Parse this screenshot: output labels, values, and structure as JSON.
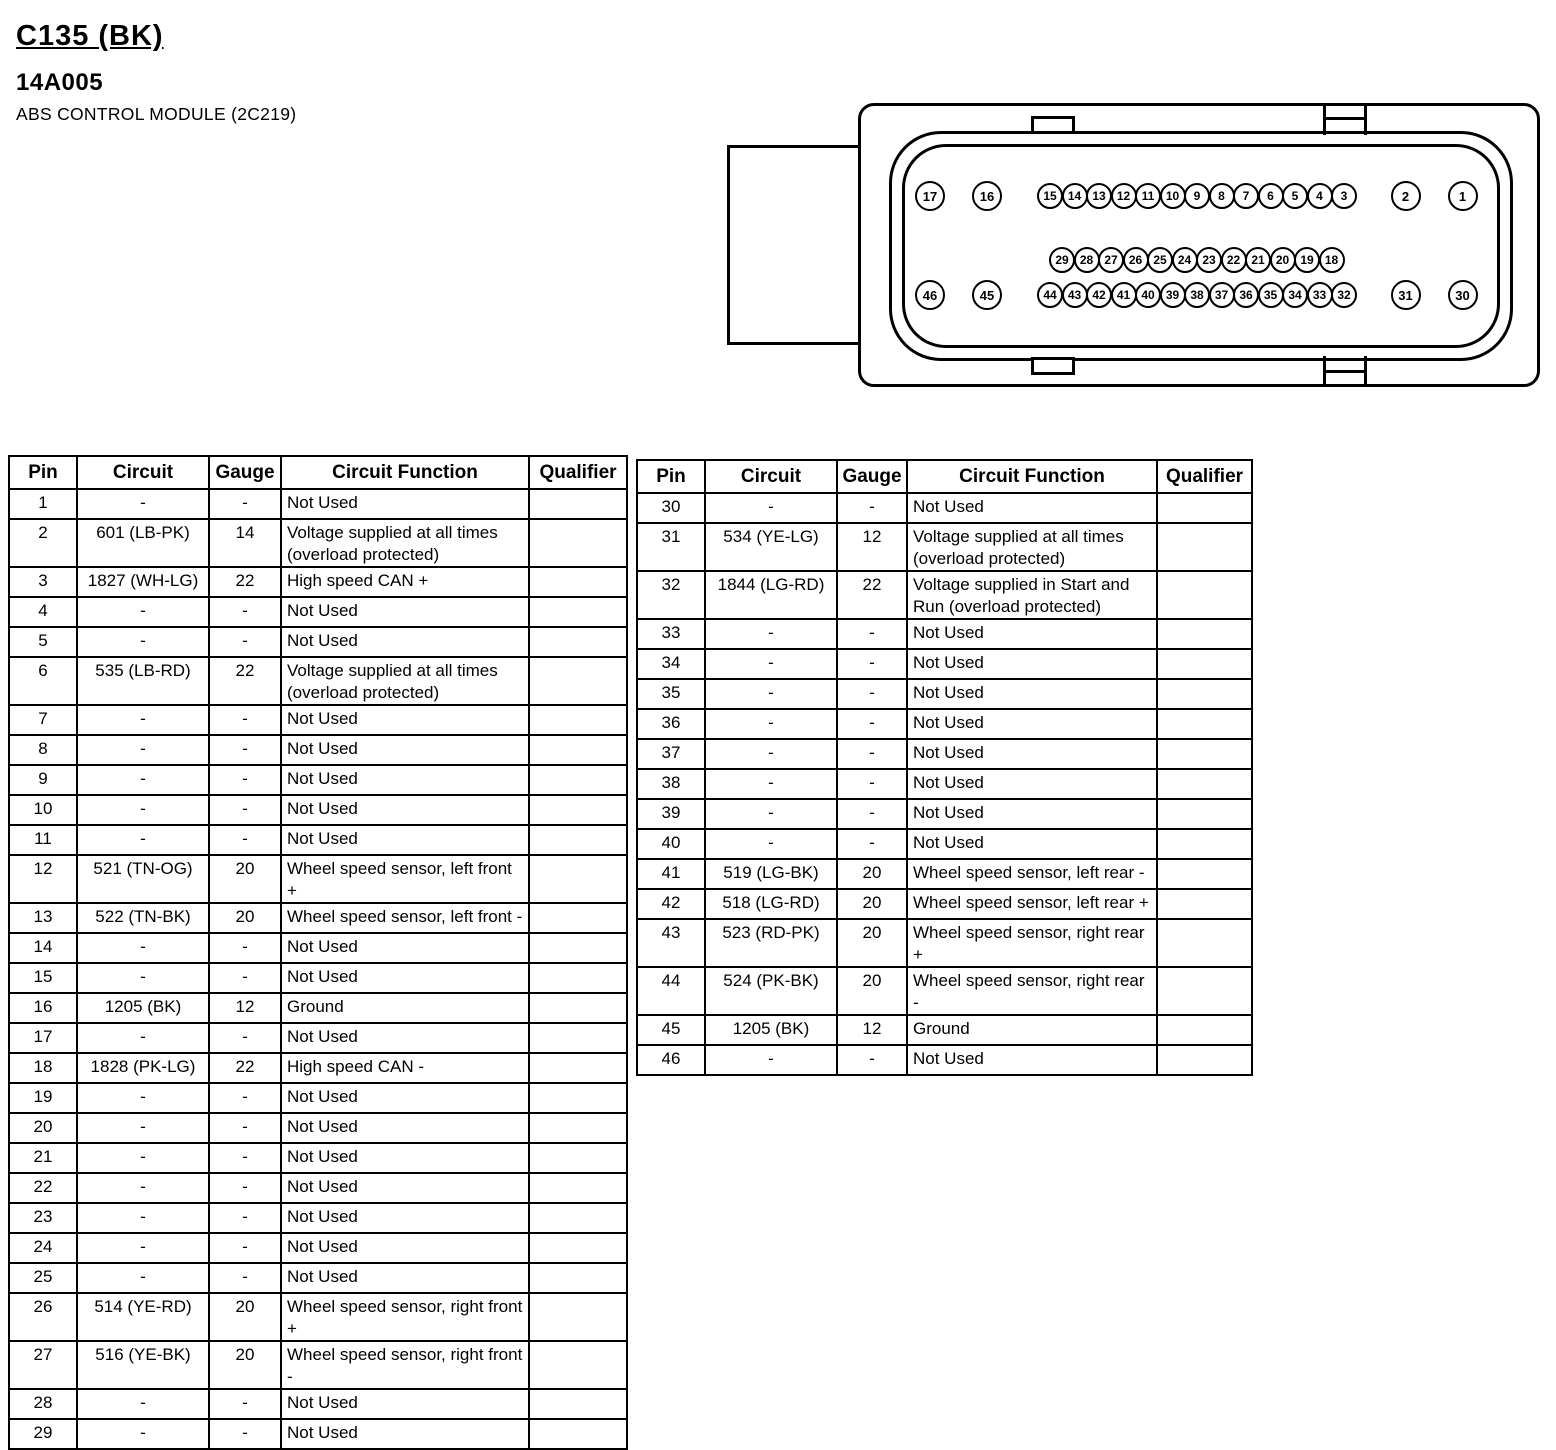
{
  "header": {
    "connector_id": "C135 (BK)",
    "part_number": "14A005",
    "component_name": "ABS CONTROL MODULE (2C219)"
  },
  "colors": {
    "ink": "#000000",
    "paper": "#ffffff"
  },
  "connector": {
    "description": "46-pin connector face view",
    "top_left": [
      "17",
      "16"
    ],
    "top_center": [
      "15",
      "14",
      "13",
      "12",
      "11",
      "10",
      "9",
      "8",
      "7",
      "6",
      "5",
      "4",
      "3"
    ],
    "top_right": [
      "2",
      "1"
    ],
    "middle": [
      "29",
      "28",
      "27",
      "26",
      "25",
      "24",
      "23",
      "22",
      "21",
      "20",
      "19",
      "18"
    ],
    "bottom_left": [
      "46",
      "45"
    ],
    "bottom_center": [
      "44",
      "43",
      "42",
      "41",
      "40",
      "39",
      "38",
      "37",
      "36",
      "35",
      "34",
      "33",
      "32"
    ],
    "bottom_right": [
      "31",
      "30"
    ]
  },
  "tables": {
    "columns": [
      "Pin",
      "Circuit",
      "Gauge",
      "Circuit Function",
      "Qualifier"
    ],
    "left_rows": [
      [
        "1",
        "-",
        "-",
        "Not Used",
        ""
      ],
      [
        "2",
        "601 (LB-PK)",
        "14",
        "Voltage supplied at all times (overload protected)",
        ""
      ],
      [
        "3",
        "1827 (WH-LG)",
        "22",
        "High speed CAN +",
        ""
      ],
      [
        "4",
        "-",
        "-",
        "Not Used",
        ""
      ],
      [
        "5",
        "-",
        "-",
        "Not Used",
        ""
      ],
      [
        "6",
        "535 (LB-RD)",
        "22",
        "Voltage supplied at all times (overload protected)",
        ""
      ],
      [
        "7",
        "-",
        "-",
        "Not Used",
        ""
      ],
      [
        "8",
        "-",
        "-",
        "Not Used",
        ""
      ],
      [
        "9",
        "-",
        "-",
        "Not Used",
        ""
      ],
      [
        "10",
        "-",
        "-",
        "Not Used",
        ""
      ],
      [
        "11",
        "-",
        "-",
        "Not Used",
        ""
      ],
      [
        "12",
        "521 (TN-OG)",
        "20",
        "Wheel speed sensor, left front +",
        ""
      ],
      [
        "13",
        "522 (TN-BK)",
        "20",
        "Wheel speed sensor, left front -",
        ""
      ],
      [
        "14",
        "-",
        "-",
        "Not Used",
        ""
      ],
      [
        "15",
        "-",
        "-",
        "Not Used",
        ""
      ],
      [
        "16",
        "1205 (BK)",
        "12",
        "Ground",
        ""
      ],
      [
        "17",
        "-",
        "-",
        "Not Used",
        ""
      ],
      [
        "18",
        "1828 (PK-LG)",
        "22",
        "High speed CAN -",
        ""
      ],
      [
        "19",
        "-",
        "-",
        "Not Used",
        ""
      ],
      [
        "20",
        "-",
        "-",
        "Not Used",
        ""
      ],
      [
        "21",
        "-",
        "-",
        "Not Used",
        ""
      ],
      [
        "22",
        "-",
        "-",
        "Not Used",
        ""
      ],
      [
        "23",
        "-",
        "-",
        "Not Used",
        ""
      ],
      [
        "24",
        "-",
        "-",
        "Not Used",
        ""
      ],
      [
        "25",
        "-",
        "-",
        "Not Used",
        ""
      ],
      [
        "26",
        "514 (YE-RD)",
        "20",
        "Wheel speed sensor, right front +",
        ""
      ],
      [
        "27",
        "516 (YE-BK)",
        "20",
        "Wheel speed sensor, right front -",
        ""
      ],
      [
        "28",
        "-",
        "-",
        "Not Used",
        ""
      ],
      [
        "29",
        "-",
        "-",
        "Not Used",
        ""
      ]
    ],
    "right_rows": [
      [
        "30",
        "-",
        "-",
        "Not Used",
        ""
      ],
      [
        "31",
        "534 (YE-LG)",
        "12",
        "Voltage supplied at all times (overload protected)",
        ""
      ],
      [
        "32",
        "1844 (LG-RD)",
        "22",
        "Voltage supplied in Start and Run (overload protected)",
        ""
      ],
      [
        "33",
        "-",
        "-",
        "Not Used",
        ""
      ],
      [
        "34",
        "-",
        "-",
        "Not Used",
        ""
      ],
      [
        "35",
        "-",
        "-",
        "Not Used",
        ""
      ],
      [
        "36",
        "-",
        "-",
        "Not Used",
        ""
      ],
      [
        "37",
        "-",
        "-",
        "Not Used",
        ""
      ],
      [
        "38",
        "-",
        "-",
        "Not Used",
        ""
      ],
      [
        "39",
        "-",
        "-",
        "Not Used",
        ""
      ],
      [
        "40",
        "-",
        "-",
        "Not Used",
        ""
      ],
      [
        "41",
        "519 (LG-BK)",
        "20",
        "Wheel speed sensor, left rear -",
        ""
      ],
      [
        "42",
        "518 (LG-RD)",
        "20",
        "Wheel speed sensor, left rear +",
        ""
      ],
      [
        "43",
        "523 (RD-PK)",
        "20",
        "Wheel speed sensor, right rear +",
        ""
      ],
      [
        "44",
        "524 (PK-BK)",
        "20",
        "Wheel speed sensor, right rear -",
        ""
      ],
      [
        "45",
        "1205 (BK)",
        "12",
        "Ground",
        ""
      ],
      [
        "46",
        "-",
        "-",
        "Not Used",
        ""
      ]
    ]
  }
}
